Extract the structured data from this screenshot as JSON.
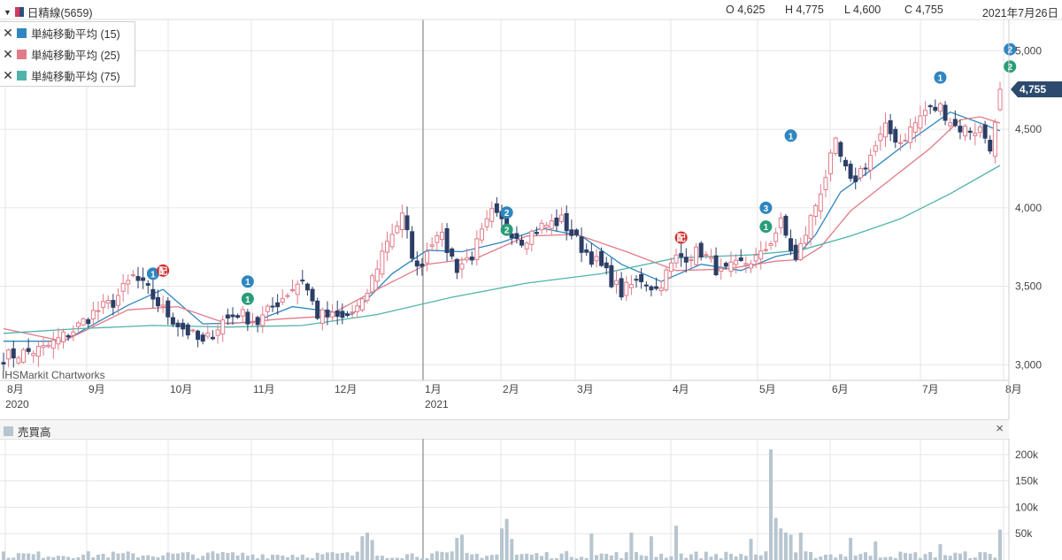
{
  "header": {
    "symbol": "日精線(5659)",
    "open": "O 4,625",
    "high": "H 4,775",
    "low": "L 4,600",
    "close": "C 4,755",
    "date": "2021年7月26日"
  },
  "legend": [
    {
      "label": "単純移動平均 (15)",
      "color": "#2f86c0"
    },
    {
      "label": "単純移動平均 (25)",
      "color": "#e07b88"
    },
    {
      "label": "単純移動平均 (75)",
      "color": "#4fb3aa"
    }
  ],
  "credit": "IHSMarkit Chartworks",
  "volume_panel": {
    "title": "売買高",
    "close_label": "×"
  },
  "chart_data": [
    {
      "type": "candlestick",
      "y_ticks": [
        "5,000",
        "4,500",
        "4,000",
        "3,500",
        "3,000"
      ],
      "ylim": [
        2900,
        5200
      ],
      "x_ticks": [
        "8月",
        "9月",
        "10月",
        "11月",
        "12月",
        "1月",
        "2月",
        "3月",
        "4月",
        "5月",
        "6月",
        "7月",
        "8月"
      ],
      "year_labels": [
        "2020",
        "2021"
      ],
      "last_price_label": "4,755",
      "up_color": "#e07b88",
      "down_color": "#2c3e66",
      "anchors": [
        [
          0,
          3050
        ],
        [
          8,
          3100
        ],
        [
          14,
          3220
        ],
        [
          18,
          3330
        ],
        [
          22,
          3400
        ],
        [
          26,
          3560
        ],
        [
          29,
          3470
        ],
        [
          32,
          3350
        ],
        [
          35,
          3260
        ],
        [
          40,
          3130
        ],
        [
          44,
          3280
        ],
        [
          47,
          3330
        ],
        [
          51,
          3270
        ],
        [
          55,
          3400
        ],
        [
          60,
          3550
        ],
        [
          63,
          3320
        ],
        [
          68,
          3290
        ],
        [
          72,
          3380
        ],
        [
          77,
          3800
        ],
        [
          80,
          3940
        ],
        [
          83,
          3600
        ],
        [
          87,
          3860
        ],
        [
          91,
          3620
        ],
        [
          94,
          3700
        ],
        [
          98,
          3960
        ],
        [
          101,
          3880
        ],
        [
          104,
          3800
        ],
        [
          108,
          3880
        ],
        [
          112,
          3920
        ],
        [
          116,
          3750
        ],
        [
          120,
          3620
        ],
        [
          124,
          3460
        ],
        [
          128,
          3550
        ],
        [
          131,
          3480
        ],
        [
          135,
          3680
        ],
        [
          140,
          3720
        ],
        [
          144,
          3580
        ],
        [
          148,
          3640
        ],
        [
          152,
          3690
        ],
        [
          156,
          3900
        ],
        [
          159,
          3660
        ],
        [
          163,
          4020
        ],
        [
          167,
          4400
        ],
        [
          170,
          4150
        ],
        [
          173,
          4280
        ],
        [
          177,
          4500
        ],
        [
          180,
          4420
        ],
        [
          185,
          4620
        ],
        [
          188,
          4640
        ],
        [
          191,
          4520
        ],
        [
          193,
          4500
        ],
        [
          196,
          4500
        ],
        [
          198,
          4400
        ],
        [
          199,
          4520
        ],
        [
          200,
          4755
        ]
      ],
      "sma": [
        {
          "name": "単純移動平均 (15)",
          "color": "#2f86c0",
          "values": [
            [
              0,
              3150
            ],
            [
              12,
              3150
            ],
            [
              25,
              3380
            ],
            [
              32,
              3480
            ],
            [
              40,
              3260
            ],
            [
              50,
              3270
            ],
            [
              58,
              3370
            ],
            [
              70,
              3320
            ],
            [
              78,
              3580
            ],
            [
              85,
              3730
            ],
            [
              92,
              3720
            ],
            [
              100,
              3780
            ],
            [
              108,
              3870
            ],
            [
              116,
              3820
            ],
            [
              124,
              3640
            ],
            [
              132,
              3530
            ],
            [
              140,
              3640
            ],
            [
              148,
              3600
            ],
            [
              155,
              3690
            ],
            [
              160,
              3720
            ],
            [
              163,
              3830
            ],
            [
              168,
              4100
            ],
            [
              175,
              4260
            ],
            [
              182,
              4430
            ],
            [
              190,
              4610
            ],
            [
              196,
              4540
            ],
            [
              200,
              4490
            ]
          ]
        },
        {
          "name": "単純移動平均 (25)",
          "color": "#e07b88",
          "values": [
            [
              0,
              3230
            ],
            [
              12,
              3150
            ],
            [
              25,
              3350
            ],
            [
              35,
              3370
            ],
            [
              45,
              3260
            ],
            [
              55,
              3290
            ],
            [
              65,
              3310
            ],
            [
              75,
              3480
            ],
            [
              85,
              3640
            ],
            [
              95,
              3680
            ],
            [
              105,
              3820
            ],
            [
              115,
              3830
            ],
            [
              125,
              3720
            ],
            [
              135,
              3600
            ],
            [
              145,
              3610
            ],
            [
              155,
              3660
            ],
            [
              160,
              3670
            ],
            [
              164,
              3750
            ],
            [
              170,
              3980
            ],
            [
              178,
              4180
            ],
            [
              186,
              4380
            ],
            [
              192,
              4560
            ],
            [
              196,
              4580
            ],
            [
              200,
              4540
            ]
          ]
        },
        {
          "name": "単純移動平均 (75)",
          "color": "#4fb3aa",
          "values": [
            [
              0,
              3200
            ],
            [
              15,
              3230
            ],
            [
              30,
              3250
            ],
            [
              45,
              3240
            ],
            [
              60,
              3250
            ],
            [
              75,
              3320
            ],
            [
              90,
              3430
            ],
            [
              105,
              3520
            ],
            [
              120,
              3580
            ],
            [
              135,
              3680
            ],
            [
              150,
              3700
            ],
            [
              160,
              3730
            ],
            [
              170,
              3820
            ],
            [
              180,
              3930
            ],
            [
              190,
              4090
            ],
            [
              200,
              4270
            ]
          ]
        }
      ],
      "markers": [
        {
          "x": 30,
          "y": 3580,
          "label": "1",
          "color": "#2f86c0"
        },
        {
          "x": 32,
          "y": 3600,
          "label": "配",
          "color": "#d12b2b"
        },
        {
          "x": 49,
          "y": 3530,
          "label": "1",
          "color": "#2f86c0"
        },
        {
          "x": 49,
          "y": 3420,
          "label": "1",
          "color": "#2a9d78"
        },
        {
          "x": 101,
          "y": 3970,
          "label": "2",
          "color": "#2f86c0"
        },
        {
          "x": 101,
          "y": 3860,
          "label": "2",
          "color": "#2a9d78"
        },
        {
          "x": 136,
          "y": 3810,
          "label": "配",
          "color": "#d12b2b"
        },
        {
          "x": 153,
          "y": 4000,
          "label": "3",
          "color": "#2f86c0"
        },
        {
          "x": 153,
          "y": 3880,
          "label": "1",
          "color": "#2a9d78"
        },
        {
          "x": 158,
          "y": 4460,
          "label": "1",
          "color": "#2f86c0"
        },
        {
          "x": 188,
          "y": 4830,
          "label": "1",
          "color": "#2f86c0"
        },
        {
          "x": 202,
          "y": 5010,
          "label": "2",
          "color": "#2f86c0"
        },
        {
          "x": 202,
          "y": 4900,
          "label": "2",
          "color": "#2a9d78"
        }
      ]
    },
    {
      "type": "bar",
      "title": "売買高",
      "y_ticks": [
        "200k",
        "150k",
        "100k",
        "50k"
      ],
      "ylim": [
        0,
        230000
      ],
      "bar_color": "#b7c5cf",
      "spikes": [
        [
          41,
          14000
        ],
        [
          44,
          15000
        ],
        [
          72,
          45000
        ],
        [
          73,
          52000
        ],
        [
          74,
          38000
        ],
        [
          91,
          42000
        ],
        [
          92,
          48000
        ],
        [
          100,
          60000
        ],
        [
          101,
          78000
        ],
        [
          102,
          40000
        ],
        [
          118,
          50000
        ],
        [
          126,
          52000
        ],
        [
          130,
          45000
        ],
        [
          135,
          65000
        ],
        [
          150,
          40000
        ],
        [
          154,
          210000
        ],
        [
          155,
          80000
        ],
        [
          156,
          60000
        ],
        [
          157,
          52000
        ],
        [
          158,
          48000
        ],
        [
          160,
          52000
        ],
        [
          170,
          42000
        ],
        [
          175,
          35000
        ],
        [
          188,
          30000
        ],
        [
          200,
          58000
        ]
      ]
    }
  ]
}
